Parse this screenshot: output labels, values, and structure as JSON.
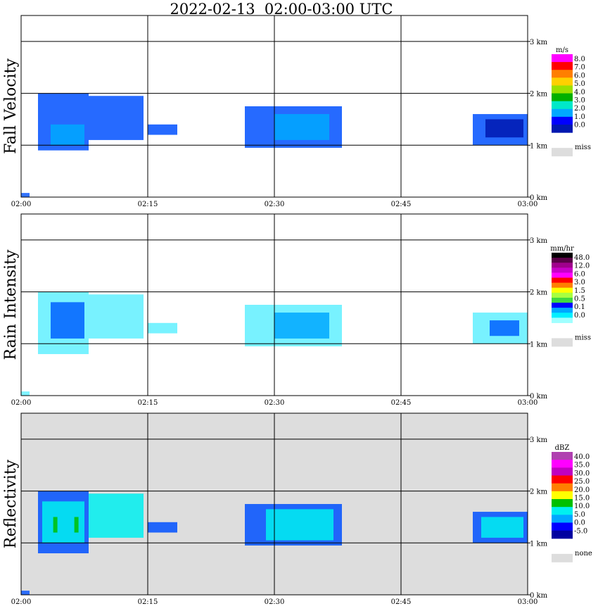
{
  "title": "2022-02-13  02:00-03:00 UTC",
  "time_ticks": [
    "02:00",
    "02:15",
    "02:30",
    "02:45",
    "03:00"
  ],
  "height_ticks": [
    "0 km",
    "1 km",
    "2 km",
    "3 km"
  ],
  "chart_data": [
    {
      "type": "heatmap",
      "ylabel": "Fall Velocity",
      "x_range": [
        "02:00",
        "03:00"
      ],
      "ylim_km": [
        0,
        3.5
      ],
      "grid": true,
      "background": "#ffffff",
      "legend": {
        "unit": "m/s",
        "labels": [
          "8.0",
          "7.0",
          "6.0",
          "5.0",
          "4.0",
          "3.0",
          "2.0",
          "1.0",
          "0.0"
        ],
        "colors": [
          "#ff00ff",
          "#ff0000",
          "#ff7f00",
          "#ffd000",
          "#9be000",
          "#00b000",
          "#00e8c8",
          "#00a8ff",
          "#0000ff",
          "#0018b0"
        ],
        "missing_label": "miss",
        "missing_color": "#dddddd"
      },
      "echo_regions": [
        {
          "t_start": 2.0,
          "t_end": 8.0,
          "h_low": 0.9,
          "h_high": 2.0,
          "color": "#0050ff"
        },
        {
          "t_start": 3.5,
          "t_end": 7.5,
          "h_low": 1.0,
          "h_high": 1.4,
          "color": "#00a8ff"
        },
        {
          "t_start": 8.0,
          "t_end": 14.5,
          "h_low": 1.1,
          "h_high": 1.95,
          "color": "#0050ff"
        },
        {
          "t_start": 15.0,
          "t_end": 18.5,
          "h_low": 1.2,
          "h_high": 1.4,
          "color": "#0050ff"
        },
        {
          "t_start": 26.5,
          "t_end": 38.0,
          "h_low": 0.95,
          "h_high": 1.75,
          "color": "#0050ff"
        },
        {
          "t_start": 30.0,
          "t_end": 36.5,
          "h_low": 1.1,
          "h_high": 1.6,
          "color": "#00a8ff"
        },
        {
          "t_start": 53.5,
          "t_end": 60.0,
          "h_low": 1.0,
          "h_high": 1.6,
          "color": "#0050ff"
        },
        {
          "t_start": 55.0,
          "t_end": 59.5,
          "h_low": 1.15,
          "h_high": 1.5,
          "color": "#0018b0"
        }
      ]
    },
    {
      "type": "heatmap",
      "ylabel": "Rain Intensity",
      "x_range": [
        "02:00",
        "03:00"
      ],
      "ylim_km": [
        0,
        3.5
      ],
      "grid": true,
      "background": "#ffffff",
      "legend": {
        "unit": "mm/hr",
        "labels": [
          "48.0",
          "12.0",
          "6.0",
          "3.0",
          "1.5",
          "0.5",
          "0.1",
          "0.0"
        ],
        "colors": [
          "#000000",
          "#5a0048",
          "#a0008c",
          "#c800c8",
          "#ff00ff",
          "#ff0000",
          "#ff7f00",
          "#ffff00",
          "#a8ff40",
          "#40d840",
          "#0000ff",
          "#00a8ff",
          "#00f0ff",
          "#a0ffff"
        ],
        "missing_label": "miss",
        "missing_color": "#dddddd"
      },
      "echo_regions": [
        {
          "t_start": 2.0,
          "t_end": 8.0,
          "h_low": 0.8,
          "h_high": 2.0,
          "color": "#60f0ff"
        },
        {
          "t_start": 3.5,
          "t_end": 7.5,
          "h_low": 1.1,
          "h_high": 1.8,
          "color": "#0060ff"
        },
        {
          "t_start": 8.0,
          "t_end": 14.5,
          "h_low": 1.1,
          "h_high": 1.95,
          "color": "#60f0ff"
        },
        {
          "t_start": 15.0,
          "t_end": 18.5,
          "h_low": 1.2,
          "h_high": 1.4,
          "color": "#60f0ff"
        },
        {
          "t_start": 26.5,
          "t_end": 38.0,
          "h_low": 0.95,
          "h_high": 1.75,
          "color": "#60f0ff"
        },
        {
          "t_start": 30.0,
          "t_end": 36.5,
          "h_low": 1.1,
          "h_high": 1.6,
          "color": "#00a8ff"
        },
        {
          "t_start": 53.5,
          "t_end": 60.0,
          "h_low": 1.0,
          "h_high": 1.6,
          "color": "#60f0ff"
        },
        {
          "t_start": 55.5,
          "t_end": 59.0,
          "h_low": 1.15,
          "h_high": 1.45,
          "color": "#0060ff"
        }
      ]
    },
    {
      "type": "heatmap",
      "ylabel": "Reflectivity",
      "x_range": [
        "02:00",
        "03:00"
      ],
      "ylim_km": [
        0,
        3.5
      ],
      "grid": true,
      "background": "#dddddd",
      "legend": {
        "unit": "dBZ",
        "labels": [
          "40.0",
          "35.0",
          "30.0",
          "25.0",
          "20.0",
          "15.0",
          "10.0",
          "5.0",
          "0.0",
          "-5.0"
        ],
        "colors": [
          "#b040b0",
          "#ff00ff",
          "#c000c0",
          "#ff0000",
          "#ff7f00",
          "#ffff00",
          "#00c000",
          "#00f0f0",
          "#00a8ff",
          "#0000ff",
          "#0000a0"
        ],
        "missing_label": "none",
        "missing_color": "#dddddd"
      },
      "echo_regions": [
        {
          "t_start": 2.0,
          "t_end": 8.0,
          "h_low": 0.8,
          "h_high": 2.0,
          "color": "#0050ff"
        },
        {
          "t_start": 2.5,
          "t_end": 7.5,
          "h_low": 1.0,
          "h_high": 1.8,
          "color": "#00f0f0"
        },
        {
          "t_start": 3.8,
          "t_end": 4.3,
          "h_low": 1.2,
          "h_high": 1.5,
          "color": "#00c000"
        },
        {
          "t_start": 6.3,
          "t_end": 6.8,
          "h_low": 1.2,
          "h_high": 1.5,
          "color": "#00c000"
        },
        {
          "t_start": 8.0,
          "t_end": 14.5,
          "h_low": 1.1,
          "h_high": 1.95,
          "color": "#00f0f0"
        },
        {
          "t_start": 15.0,
          "t_end": 18.5,
          "h_low": 1.2,
          "h_high": 1.4,
          "color": "#0050ff"
        },
        {
          "t_start": 26.5,
          "t_end": 38.0,
          "h_low": 0.95,
          "h_high": 1.75,
          "color": "#0050ff"
        },
        {
          "t_start": 29.0,
          "t_end": 37.0,
          "h_low": 1.05,
          "h_high": 1.65,
          "color": "#00f0f0"
        },
        {
          "t_start": 53.5,
          "t_end": 60.0,
          "h_low": 1.0,
          "h_high": 1.6,
          "color": "#0050ff"
        },
        {
          "t_start": 54.5,
          "t_end": 59.5,
          "h_low": 1.1,
          "h_high": 1.5,
          "color": "#00f0f0"
        }
      ]
    }
  ]
}
